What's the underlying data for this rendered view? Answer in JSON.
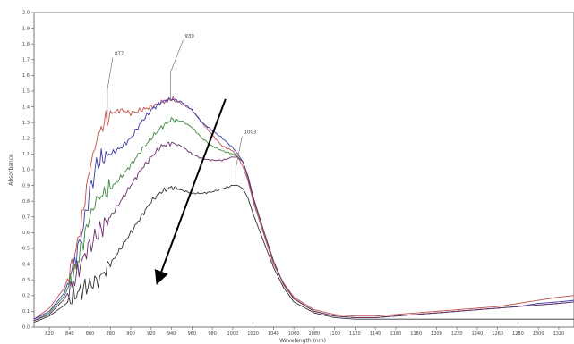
{
  "chart_data": {
    "type": "line",
    "xlabel": "Wavelength (nm)",
    "ylabel": "Absorbance",
    "xlim": [
      805,
      1335
    ],
    "ylim": [
      0.0,
      2.0
    ],
    "grid": false,
    "x_ticks": [
      820,
      840,
      860,
      880,
      900,
      920,
      940,
      960,
      980,
      1000,
      1020,
      1040,
      1060,
      1080,
      1100,
      1120,
      1140,
      1160,
      1180,
      1200,
      1220,
      1240,
      1260,
      1280,
      1300,
      1320
    ],
    "y_ticks": [
      "0.0",
      "0.1",
      "0.2",
      "0.3",
      "0.4",
      "0.5",
      "0.6",
      "0.7",
      "0.8",
      "0.9",
      "1.0",
      "1.1",
      "1.2",
      "1.3",
      "1.4",
      "1.5",
      "1.6",
      "1.7",
      "1.8",
      "1.9",
      "2.0"
    ],
    "series": [
      {
        "color": "#c0504d",
        "points": [
          [
            805,
            0.05
          ],
          [
            820,
            0.12
          ],
          [
            835,
            0.25
          ],
          [
            845,
            0.45
          ],
          [
            852,
            0.68
          ],
          [
            858,
            0.95
          ],
          [
            863,
            1.1
          ],
          [
            868,
            1.22
          ],
          [
            874,
            1.3
          ],
          [
            880,
            1.36
          ],
          [
            890,
            1.38
          ],
          [
            900,
            1.36
          ],
          [
            910,
            1.38
          ],
          [
            920,
            1.4
          ],
          [
            930,
            1.43
          ],
          [
            940,
            1.45
          ],
          [
            950,
            1.42
          ],
          [
            960,
            1.38
          ],
          [
            970,
            1.3
          ],
          [
            980,
            1.22
          ],
          [
            990,
            1.15
          ],
          [
            1000,
            1.12
          ],
          [
            1005,
            1.08
          ],
          [
            1010,
            1.02
          ],
          [
            1015,
            0.93
          ],
          [
            1020,
            0.8
          ],
          [
            1030,
            0.6
          ],
          [
            1040,
            0.4
          ],
          [
            1050,
            0.28
          ],
          [
            1060,
            0.19
          ],
          [
            1080,
            0.11
          ],
          [
            1100,
            0.08
          ],
          [
            1120,
            0.07
          ],
          [
            1140,
            0.07
          ],
          [
            1160,
            0.08
          ],
          [
            1180,
            0.09
          ],
          [
            1200,
            0.1
          ],
          [
            1220,
            0.11
          ],
          [
            1240,
            0.12
          ],
          [
            1260,
            0.13
          ],
          [
            1280,
            0.15
          ],
          [
            1300,
            0.17
          ],
          [
            1320,
            0.19
          ],
          [
            1335,
            0.2
          ]
        ]
      },
      {
        "color": "#3a3aa8",
        "points": [
          [
            805,
            0.05
          ],
          [
            820,
            0.1
          ],
          [
            835,
            0.22
          ],
          [
            845,
            0.42
          ],
          [
            852,
            0.6
          ],
          [
            858,
            0.8
          ],
          [
            863,
            0.95
          ],
          [
            868,
            1.05
          ],
          [
            874,
            1.08
          ],
          [
            880,
            1.1
          ],
          [
            890,
            1.14
          ],
          [
            900,
            1.2
          ],
          [
            910,
            1.3
          ],
          [
            920,
            1.38
          ],
          [
            930,
            1.43
          ],
          [
            940,
            1.45
          ],
          [
            950,
            1.43
          ],
          [
            960,
            1.38
          ],
          [
            970,
            1.3
          ],
          [
            980,
            1.25
          ],
          [
            990,
            1.2
          ],
          [
            1000,
            1.14
          ],
          [
            1005,
            1.1
          ],
          [
            1010,
            1.05
          ],
          [
            1015,
            0.95
          ],
          [
            1020,
            0.82
          ],
          [
            1030,
            0.62
          ],
          [
            1040,
            0.42
          ],
          [
            1050,
            0.27
          ],
          [
            1060,
            0.18
          ],
          [
            1080,
            0.1
          ],
          [
            1100,
            0.07
          ],
          [
            1120,
            0.06
          ],
          [
            1140,
            0.06
          ],
          [
            1160,
            0.07
          ],
          [
            1180,
            0.08
          ],
          [
            1200,
            0.09
          ],
          [
            1220,
            0.1
          ],
          [
            1240,
            0.11
          ],
          [
            1260,
            0.12
          ],
          [
            1280,
            0.13
          ],
          [
            1300,
            0.15
          ],
          [
            1320,
            0.16
          ],
          [
            1335,
            0.17
          ]
        ]
      },
      {
        "color": "#3e8a3e",
        "points": [
          [
            805,
            0.04
          ],
          [
            820,
            0.09
          ],
          [
            835,
            0.2
          ],
          [
            845,
            0.35
          ],
          [
            852,
            0.52
          ],
          [
            858,
            0.66
          ],
          [
            863,
            0.76
          ],
          [
            868,
            0.82
          ],
          [
            874,
            0.85
          ],
          [
            880,
            0.88
          ],
          [
            890,
            0.95
          ],
          [
            900,
            1.03
          ],
          [
            910,
            1.12
          ],
          [
            920,
            1.2
          ],
          [
            930,
            1.27
          ],
          [
            940,
            1.32
          ],
          [
            950,
            1.31
          ],
          [
            960,
            1.27
          ],
          [
            970,
            1.2
          ],
          [
            980,
            1.15
          ],
          [
            990,
            1.12
          ],
          [
            1000,
            1.1
          ],
          [
            1005,
            1.08
          ],
          [
            1010,
            1.05
          ],
          [
            1015,
            0.96
          ],
          [
            1020,
            0.83
          ],
          [
            1030,
            0.62
          ],
          [
            1040,
            0.42
          ],
          [
            1050,
            0.27
          ],
          [
            1060,
            0.18
          ],
          [
            1080,
            0.1
          ],
          [
            1100,
            0.07
          ],
          [
            1120,
            0.06
          ],
          [
            1140,
            0.06
          ],
          [
            1160,
            0.07
          ],
          [
            1180,
            0.08
          ],
          [
            1200,
            0.09
          ],
          [
            1220,
            0.1
          ],
          [
            1240,
            0.11
          ],
          [
            1260,
            0.12
          ],
          [
            1280,
            0.13
          ],
          [
            1300,
            0.14
          ],
          [
            1320,
            0.15
          ],
          [
            1335,
            0.16
          ]
        ]
      },
      {
        "color": "#6a2a6a",
        "points": [
          [
            805,
            0.04
          ],
          [
            820,
            0.08
          ],
          [
            835,
            0.18
          ],
          [
            845,
            0.3
          ],
          [
            852,
            0.42
          ],
          [
            858,
            0.5
          ],
          [
            863,
            0.55
          ],
          [
            868,
            0.6
          ],
          [
            874,
            0.65
          ],
          [
            880,
            0.7
          ],
          [
            890,
            0.8
          ],
          [
            900,
            0.9
          ],
          [
            910,
            1.0
          ],
          [
            920,
            1.08
          ],
          [
            930,
            1.15
          ],
          [
            940,
            1.17
          ],
          [
            950,
            1.15
          ],
          [
            960,
            1.1
          ],
          [
            970,
            1.07
          ],
          [
            980,
            1.06
          ],
          [
            990,
            1.06
          ],
          [
            1000,
            1.08
          ],
          [
            1005,
            1.08
          ],
          [
            1010,
            1.05
          ],
          [
            1015,
            0.96
          ],
          [
            1020,
            0.83
          ],
          [
            1030,
            0.62
          ],
          [
            1040,
            0.42
          ],
          [
            1050,
            0.27
          ],
          [
            1060,
            0.18
          ],
          [
            1080,
            0.1
          ],
          [
            1100,
            0.07
          ],
          [
            1120,
            0.06
          ],
          [
            1140,
            0.06
          ],
          [
            1160,
            0.07
          ],
          [
            1180,
            0.08
          ],
          [
            1200,
            0.09
          ],
          [
            1220,
            0.1
          ],
          [
            1240,
            0.11
          ],
          [
            1260,
            0.12
          ],
          [
            1280,
            0.13
          ],
          [
            1300,
            0.14
          ],
          [
            1320,
            0.15
          ],
          [
            1335,
            0.16
          ]
        ]
      },
      {
        "color": "#333333",
        "points": [
          [
            805,
            0.03
          ],
          [
            820,
            0.07
          ],
          [
            835,
            0.14
          ],
          [
            845,
            0.2
          ],
          [
            852,
            0.24
          ],
          [
            858,
            0.26
          ],
          [
            863,
            0.28
          ],
          [
            868,
            0.3
          ],
          [
            874,
            0.35
          ],
          [
            880,
            0.4
          ],
          [
            890,
            0.5
          ],
          [
            900,
            0.6
          ],
          [
            910,
            0.7
          ],
          [
            920,
            0.8
          ],
          [
            930,
            0.86
          ],
          [
            940,
            0.89
          ],
          [
            950,
            0.87
          ],
          [
            960,
            0.85
          ],
          [
            970,
            0.85
          ],
          [
            980,
            0.86
          ],
          [
            990,
            0.88
          ],
          [
            1000,
            0.9
          ],
          [
            1005,
            0.9
          ],
          [
            1010,
            0.88
          ],
          [
            1015,
            0.82
          ],
          [
            1020,
            0.72
          ],
          [
            1030,
            0.55
          ],
          [
            1040,
            0.38
          ],
          [
            1050,
            0.25
          ],
          [
            1060,
            0.16
          ],
          [
            1080,
            0.09
          ],
          [
            1100,
            0.06
          ],
          [
            1120,
            0.05
          ],
          [
            1140,
            0.05
          ],
          [
            1160,
            0.05
          ],
          [
            1180,
            0.05
          ],
          [
            1200,
            0.05
          ],
          [
            1220,
            0.05
          ],
          [
            1240,
            0.05
          ],
          [
            1260,
            0.05
          ],
          [
            1280,
            0.05
          ],
          [
            1300,
            0.05
          ],
          [
            1320,
            0.05
          ],
          [
            1335,
            0.05
          ]
        ]
      }
    ],
    "annotations": [
      {
        "label": "877",
        "x": 877,
        "y": 1.33,
        "label_x": 884,
        "label_y": 1.73
      },
      {
        "label": "939",
        "x": 939,
        "y": 1.45,
        "label_x": 953,
        "label_y": 1.84
      },
      {
        "label": "1003",
        "x": 1003,
        "y": 0.9,
        "label_x": 1011,
        "label_y": 1.23
      }
    ],
    "arrow": {
      "from": [
        993,
        1.45
      ],
      "to": [
        927,
        0.3
      ]
    }
  }
}
